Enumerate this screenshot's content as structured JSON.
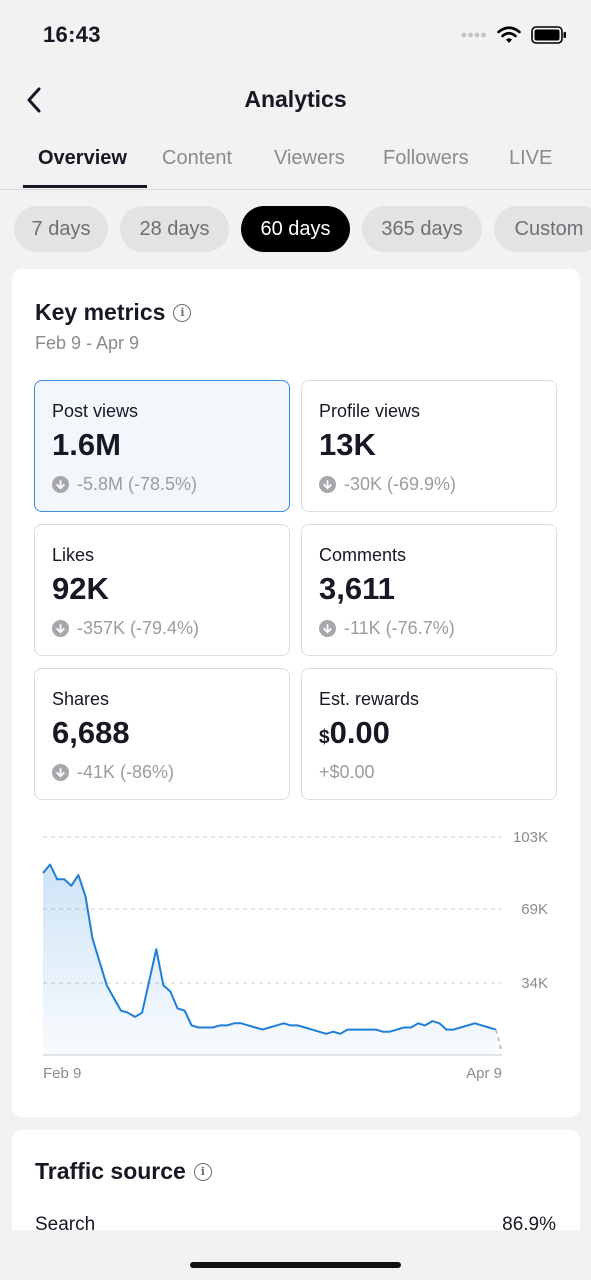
{
  "status_bar": {
    "time": "16:43"
  },
  "header": {
    "title": "Analytics",
    "back_icon": "chevron-left-icon"
  },
  "tabs": [
    {
      "label": "Overview",
      "active": true
    },
    {
      "label": "Content",
      "active": false
    },
    {
      "label": "Viewers",
      "active": false
    },
    {
      "label": "Followers",
      "active": false
    },
    {
      "label": "LIVE",
      "active": false
    }
  ],
  "ranges": [
    {
      "label": "7 days",
      "active": false
    },
    {
      "label": "28 days",
      "active": false
    },
    {
      "label": "60 days",
      "active": true
    },
    {
      "label": "365 days",
      "active": false
    },
    {
      "label": "Custom",
      "active": false
    }
  ],
  "key_metrics": {
    "title": "Key metrics",
    "date_range": "Feb 9 - Apr 9",
    "metrics": [
      {
        "label": "Post views",
        "value": "1.6M",
        "delta": "-5.8M (-78.5%)",
        "selected": true
      },
      {
        "label": "Profile views",
        "value": "13K",
        "delta": "-30K (-69.9%)"
      },
      {
        "label": "Likes",
        "value": "92K",
        "delta": "-357K (-79.4%)"
      },
      {
        "label": "Comments",
        "value": "3,611",
        "delta": "-11K (-76.7%)"
      },
      {
        "label": "Shares",
        "value": "6,688",
        "delta": "-41K (-86%)"
      },
      {
        "label": "Est. rewards",
        "currency": "$",
        "value": "0.00",
        "delta": "+$0.00"
      }
    ]
  },
  "chart_data": {
    "type": "area",
    "x_start_label": "Feb 9",
    "x_end_label": "Apr 9",
    "y_ticks": [
      "103K",
      "69K",
      "34K"
    ],
    "y_tick_values": [
      103,
      69,
      34
    ],
    "ylim": [
      0,
      103
    ],
    "unit": "K",
    "color": "#1f7ed6",
    "values": [
      86,
      90,
      83,
      83,
      80,
      85,
      75,
      55,
      44,
      33,
      27,
      21,
      20,
      18,
      20,
      35,
      50,
      33,
      30,
      22,
      21,
      14,
      13,
      13,
      13,
      14,
      14,
      15,
      15,
      14,
      13,
      12,
      13,
      14,
      15,
      14,
      14,
      13,
      12,
      11,
      10,
      11,
      10,
      12,
      12,
      12,
      12,
      12,
      11,
      11,
      12,
      13,
      13,
      15,
      14,
      16,
      15,
      12,
      12,
      13,
      14,
      15,
      14,
      13,
      12
    ]
  },
  "traffic_source": {
    "title": "Traffic source",
    "rows": [
      {
        "name": "Search",
        "percent": "86.9%"
      }
    ]
  },
  "colors": {
    "accent": "#1f7ed6",
    "selected_border": "#3a8ee6",
    "text": "#161823",
    "muted": "#8a8b91"
  }
}
